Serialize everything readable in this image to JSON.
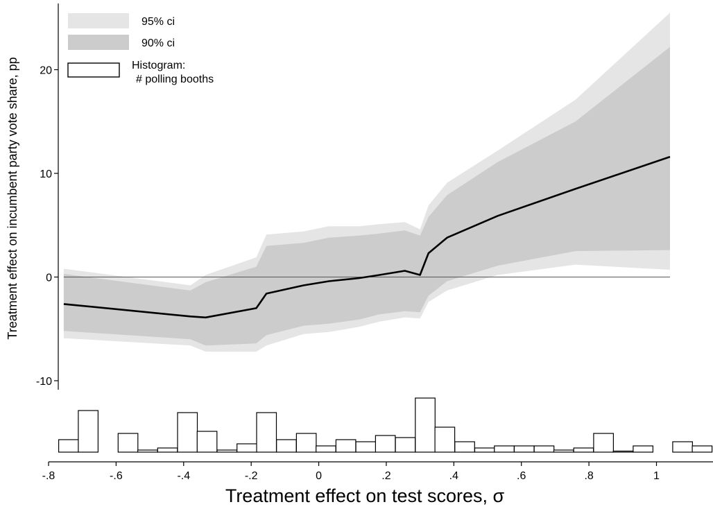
{
  "chart_data": {
    "type": "line",
    "ylabel": "Treatment effect on incumbent party vote share, pp",
    "xlabel": "Treatment effect on test scores, σ",
    "xlim": [
      -0.8,
      1.15
    ],
    "ylim": [
      -10.5,
      26
    ],
    "x_ticks": [
      {
        "value": -0.8,
        "label": "-.8"
      },
      {
        "value": -0.6,
        "label": "-.6"
      },
      {
        "value": -0.4,
        "label": "-.4"
      },
      {
        "value": -0.2,
        "label": "-.2"
      },
      {
        "value": 0,
        "label": "0"
      },
      {
        "value": 0.2,
        "label": ".2"
      },
      {
        "value": 0.4,
        "label": ".4"
      },
      {
        "value": 0.6,
        "label": ".6"
      },
      {
        "value": 0.8,
        "label": ".8"
      },
      {
        "value": 1,
        "label": "1"
      }
    ],
    "y_ticks": [
      {
        "value": -10,
        "label": "-10"
      },
      {
        "value": 0,
        "label": "0"
      },
      {
        "value": 10,
        "label": "10"
      },
      {
        "value": 20,
        "label": "20"
      }
    ],
    "reference_line_y": 0,
    "legend": {
      "position": "top-left",
      "entries": [
        {
          "key": "ci95",
          "label": "95% ci",
          "color": "#e5e5e5"
        },
        {
          "key": "ci90",
          "label": "90% ci",
          "color": "#cccccc"
        },
        {
          "key": "hist",
          "label_line1": "Histogram:",
          "label_line2": "# polling booths",
          "color": "#ffffff"
        }
      ]
    },
    "series": {
      "x": [
        -0.755,
        -0.38,
        -0.335,
        -0.185,
        -0.155,
        -0.045,
        0.03,
        0.12,
        0.18,
        0.255,
        0.3,
        0.325,
        0.38,
        0.53,
        0.76,
        1.04
      ],
      "estimate": [
        -2.6,
        -3.8,
        -3.9,
        -3.0,
        -1.6,
        -0.8,
        -0.4,
        -0.1,
        0.2,
        0.6,
        0.2,
        2.3,
        3.8,
        5.9,
        8.5,
        11.6
      ],
      "ci90_lower": [
        -5.2,
        -6.0,
        -6.6,
        -6.4,
        -5.6,
        -4.7,
        -4.5,
        -4.1,
        -3.6,
        -3.3,
        -3.4,
        -1.8,
        -0.4,
        1.1,
        2.5,
        2.6
      ],
      "ci90_upper": [
        0.3,
        -1.3,
        -0.5,
        1.0,
        3.0,
        3.3,
        3.8,
        4.0,
        4.2,
        4.5,
        4.0,
        5.8,
        7.9,
        11.1,
        15.0,
        22.2
      ],
      "ci95_lower": [
        -5.9,
        -6.6,
        -7.2,
        -7.2,
        -6.6,
        -5.5,
        -5.3,
        -4.8,
        -4.3,
        -3.9,
        -4.0,
        -2.4,
        -1.3,
        0.2,
        1.2,
        0.7
      ],
      "ci95_upper": [
        0.8,
        -0.8,
        0.2,
        1.9,
        4.1,
        4.4,
        4.9,
        4.9,
        5.1,
        5.3,
        4.6,
        6.9,
        9.1,
        12.2,
        17.1,
        25.5
      ]
    },
    "histogram": {
      "bin_width": 0.0586,
      "bin_starts": [
        -0.77,
        -0.712,
        -0.594,
        -0.536,
        -0.477,
        -0.418,
        -0.36,
        -0.301,
        -0.242,
        -0.184,
        -0.125,
        -0.066,
        -0.008,
        0.051,
        0.11,
        0.168,
        0.227,
        0.286,
        0.344,
        0.403,
        0.462,
        0.52,
        0.579,
        0.638,
        0.696,
        0.755,
        0.814,
        0.872,
        0.931,
        1.048,
        1.106
      ],
      "counts": [
        6,
        20,
        9,
        1,
        2,
        19,
        10,
        1,
        4,
        19,
        6,
        9,
        3,
        6,
        5,
        8,
        7,
        26,
        12,
        5,
        2,
        3,
        3,
        3,
        1,
        2,
        9,
        0.5,
        3,
        5,
        3
      ]
    }
  }
}
